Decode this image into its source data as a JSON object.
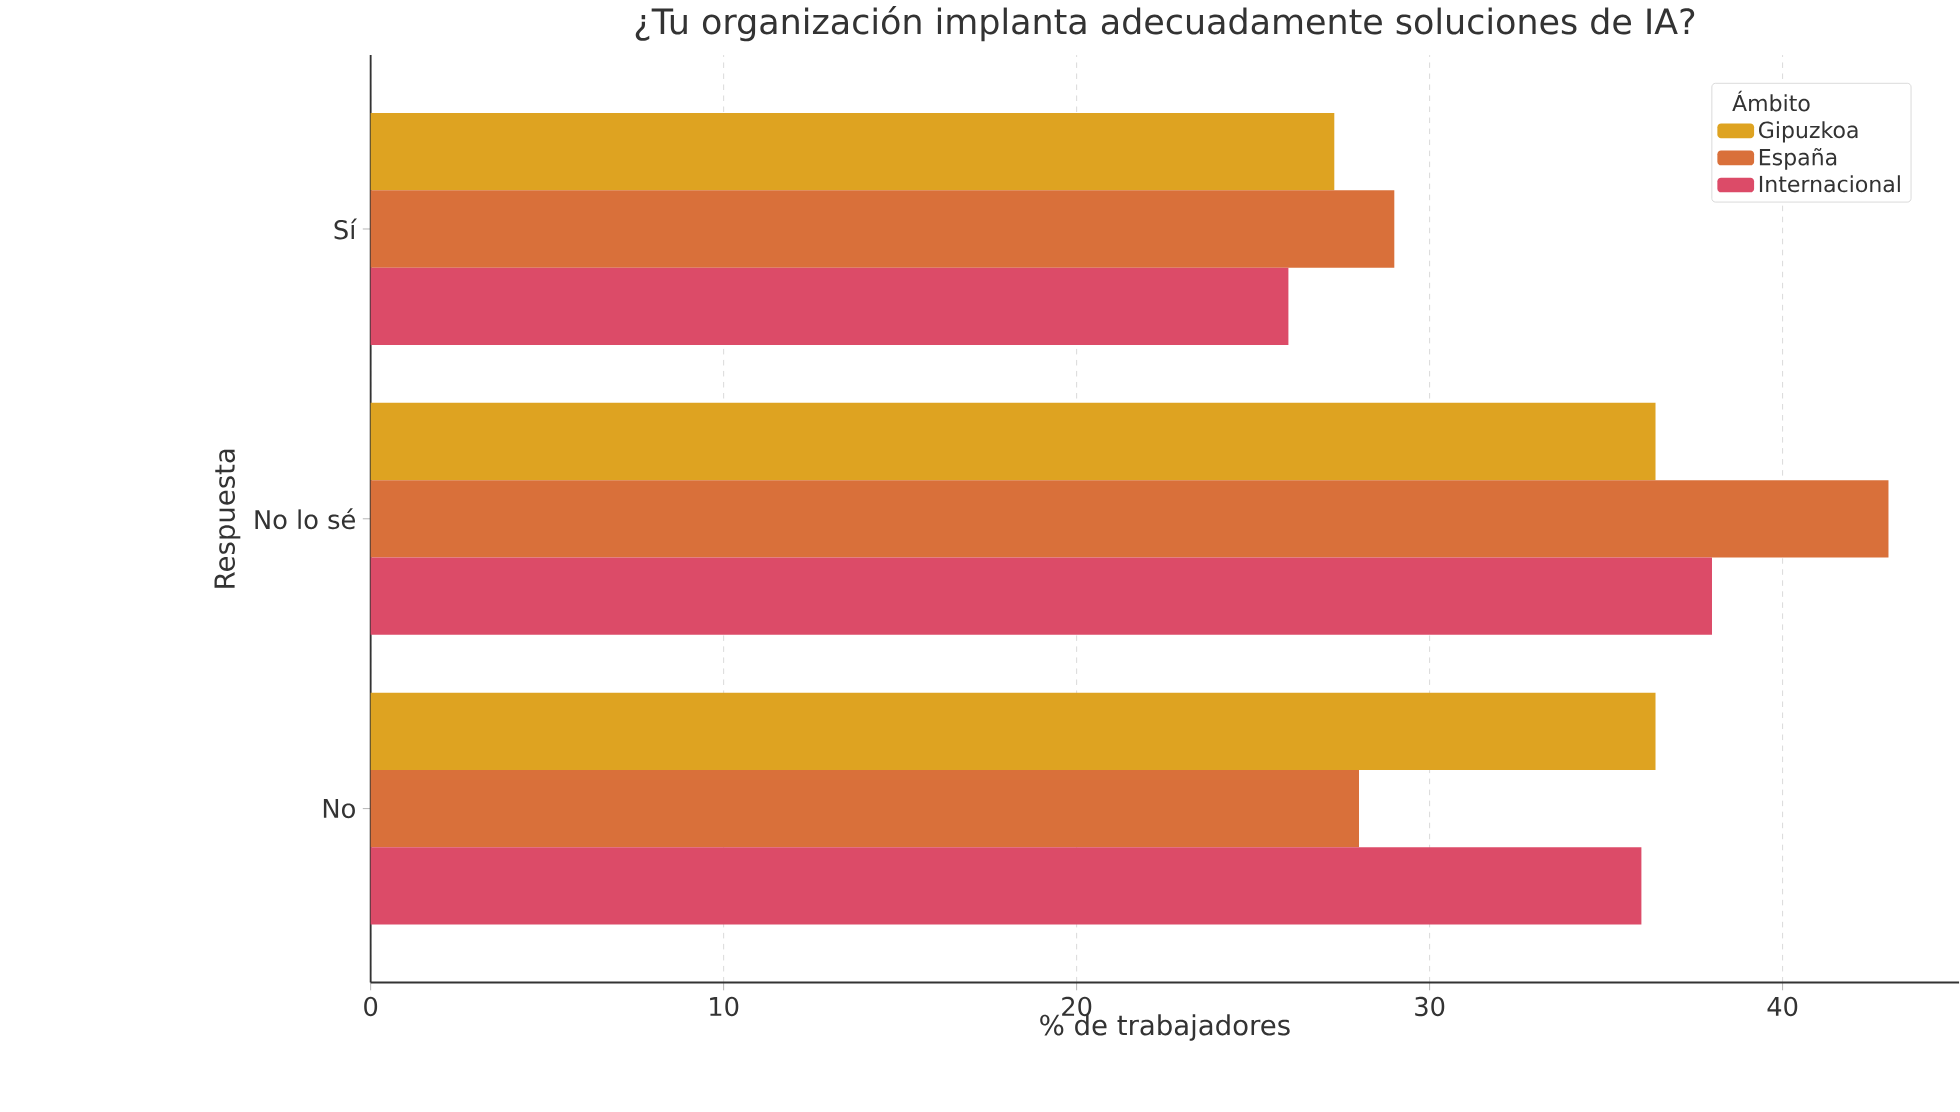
{
  "chart_data": {
    "type": "bar",
    "orientation": "horizontal",
    "title": "¿Tu organización implanta adecuadamente soluciones de IA?",
    "xlabel": "% de trabajadores",
    "ylabel": "Respuesta",
    "legend_title": "Ámbito",
    "categories": [
      "Sí",
      "No lo sé",
      "No"
    ],
    "series": [
      {
        "name": "Gipuzkoa",
        "color": "#dea321",
        "values": [
          27.3,
          36.4,
          36.4
        ]
      },
      {
        "name": "España",
        "color": "#d9703a",
        "values": [
          29.0,
          43.0,
          28.0
        ]
      },
      {
        "name": "Internacional",
        "color": "#dc4b68",
        "values": [
          26.0,
          38.0,
          36.0
        ]
      }
    ],
    "xlim": [
      0,
      45
    ],
    "xticks": [
      0,
      10,
      20,
      30,
      40
    ],
    "grid": "x",
    "legend": "top right"
  }
}
